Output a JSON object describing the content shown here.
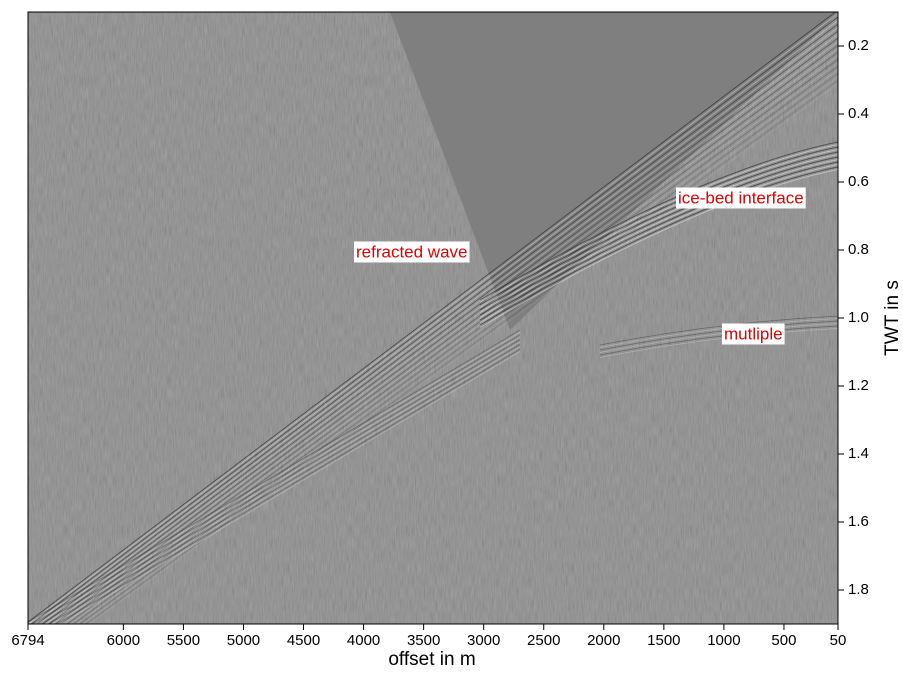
{
  "chart_data": {
    "type": "seismic",
    "x_label": "offset in m",
    "y_label": "TWT in s",
    "xlim": [
      6794,
      50
    ],
    "xticks": [
      6794,
      6000,
      5500,
      5000,
      4500,
      4000,
      3500,
      3000,
      2500,
      2000,
      1500,
      1000,
      500,
      50
    ],
    "ylim": [
      0.1,
      1.9
    ],
    "yticks": [
      0.2,
      0.4,
      0.6,
      0.8,
      {
        "value": 1,
        "label": "1.0"
      },
      1.2,
      1.4,
      1.6,
      1.8
    ],
    "annotations": [
      "refracted wave",
      "ice-bed interface",
      "mutliple"
    ]
  }
}
